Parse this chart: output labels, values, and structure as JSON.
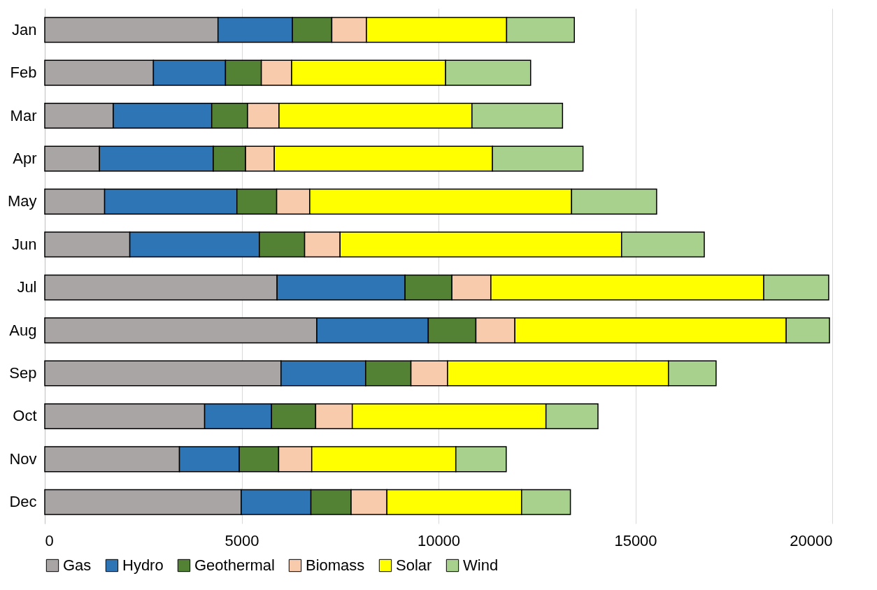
{
  "chart_data": {
    "type": "bar",
    "orientation": "horizontal",
    "stacked": true,
    "categories": [
      "Jan",
      "Feb",
      "Mar",
      "Apr",
      "May",
      "Jun",
      "Jul",
      "Aug",
      "Sep",
      "Oct",
      "Nov",
      "Dec"
    ],
    "series": [
      {
        "name": "Gas",
        "color": "#a9a5a5",
        "values": [
          4400,
          2760,
          1740,
          1390,
          1520,
          2160,
          5900,
          6910,
          6000,
          4060,
          3420,
          4990
        ]
      },
      {
        "name": "Hydro",
        "color": "#2e75b6",
        "values": [
          1890,
          1830,
          2500,
          2890,
          3360,
          3290,
          3250,
          2830,
          2150,
          1700,
          1520,
          1770
        ]
      },
      {
        "name": "Geothermal",
        "color": "#548235",
        "values": [
          1000,
          910,
          910,
          820,
          1010,
          1150,
          1190,
          1210,
          1150,
          1120,
          1000,
          1020
        ]
      },
      {
        "name": "Biomass",
        "color": "#f8cbad",
        "values": [
          880,
          770,
          800,
          730,
          840,
          900,
          990,
          990,
          930,
          930,
          840,
          910
        ]
      },
      {
        "name": "Solar",
        "color": "#ffff00",
        "values": [
          3560,
          3910,
          4900,
          5540,
          6650,
          7150,
          6930,
          6890,
          5610,
          4920,
          3660,
          3420
        ]
      },
      {
        "name": "Wind",
        "color": "#a9d18e",
        "values": [
          1720,
          2160,
          2300,
          2300,
          2160,
          2100,
          1650,
          1100,
          1210,
          1320,
          1280,
          1240
        ]
      }
    ],
    "xlim": [
      0,
      20000
    ],
    "xticks": [
      0,
      5000,
      10000,
      15000,
      20000
    ],
    "grid": "x",
    "legend": "bottom"
  }
}
